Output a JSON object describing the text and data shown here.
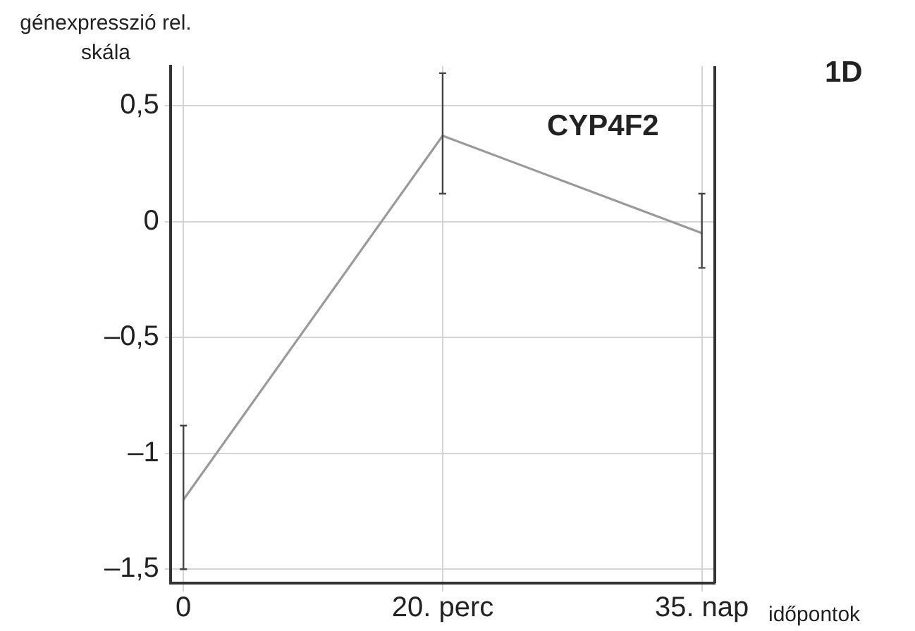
{
  "chart_data": {
    "type": "line",
    "ylabel": "génexpresszió rel. skála",
    "xlabel": "időpontok",
    "annotations": [
      "CYP4F2",
      "1D"
    ],
    "categories": [
      "0",
      "20. perc",
      "35. nap"
    ],
    "series": [
      {
        "color": "#9a9a9a",
        "values": [
          -1.2,
          0.37,
          -0.05
        ],
        "errors": [
          [
            -1.5,
            -0.88
          ],
          [
            0.12,
            0.64
          ],
          [
            -0.2,
            0.12
          ]
        ]
      }
    ],
    "ylim": [
      -1.56,
      0.67
    ],
    "yticks": [
      {
        "value": 0.5,
        "label": "0,5"
      },
      {
        "value": 0,
        "label": "0"
      },
      {
        "value": -0.5,
        "label": "–0,5"
      },
      {
        "value": -1,
        "label": "–1"
      },
      {
        "value": -1.5,
        "label": "–1,5"
      }
    ],
    "grid": true,
    "legend": false,
    "marker": "none",
    "line_style": "solid"
  }
}
